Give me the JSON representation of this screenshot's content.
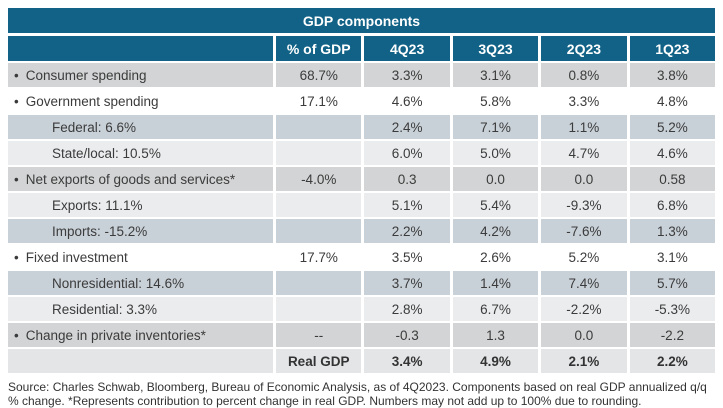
{
  "colors": {
    "header_teal": "#116286",
    "header_text": "#ffffff",
    "row_gray": "#d3d4d5",
    "row_white": "#ffffff",
    "row_sub_dark": "#c9d1d8",
    "row_sub_light": "#eaecee",
    "row_total": "#e3e5e7",
    "body_text": "#3b3b3b"
  },
  "chart_data": {
    "type": "table",
    "title": "GDP components",
    "columns": [
      "% of GDP",
      "4Q23",
      "3Q23",
      "2Q23",
      "1Q23"
    ],
    "rows": [
      {
        "label": "Consumer spending",
        "bullet": true,
        "indent": false,
        "bold": false,
        "shade": "gray",
        "cells": [
          "68.7%",
          "3.3%",
          "3.1%",
          "0.8%",
          "3.8%"
        ]
      },
      {
        "label": "Government spending",
        "bullet": true,
        "indent": false,
        "bold": false,
        "shade": "white",
        "cells": [
          "17.1%",
          "4.6%",
          "5.8%",
          "3.3%",
          "4.8%"
        ]
      },
      {
        "label": "Federal: 6.6%",
        "bullet": false,
        "indent": true,
        "bold": false,
        "shade": "subdark",
        "cells": [
          "",
          "2.4%",
          "7.1%",
          "1.1%",
          "5.2%"
        ]
      },
      {
        "label": "State/local: 10.5%",
        "bullet": false,
        "indent": true,
        "bold": false,
        "shade": "sublight",
        "cells": [
          "",
          "6.0%",
          "5.0%",
          "4.7%",
          "4.6%"
        ]
      },
      {
        "label": "Net exports of goods and services*",
        "bullet": true,
        "indent": false,
        "bold": false,
        "shade": "gray",
        "cells": [
          "-4.0%",
          "0.3",
          "0.0",
          "0.0",
          "0.58"
        ]
      },
      {
        "label": "Exports: 11.1%",
        "bullet": false,
        "indent": true,
        "bold": false,
        "shade": "sublight",
        "cells": [
          "",
          "5.1%",
          "5.4%",
          "-9.3%",
          "6.8%"
        ]
      },
      {
        "label": "Imports: -15.2%",
        "bullet": false,
        "indent": true,
        "bold": false,
        "shade": "subdark",
        "cells": [
          "",
          "2.2%",
          "4.2%",
          "-7.6%",
          "1.3%"
        ]
      },
      {
        "label": "Fixed investment",
        "bullet": true,
        "indent": false,
        "bold": false,
        "shade": "white",
        "cells": [
          "17.7%",
          "3.5%",
          "2.6%",
          "5.2%",
          "3.1%"
        ]
      },
      {
        "label": "Nonresidential: 14.6%",
        "bullet": false,
        "indent": true,
        "bold": false,
        "shade": "subdark",
        "cells": [
          "",
          "3.7%",
          "1.4%",
          "7.4%",
          "5.7%"
        ]
      },
      {
        "label": "Residential: 3.3%",
        "bullet": false,
        "indent": true,
        "bold": false,
        "shade": "sublight",
        "cells": [
          "",
          "2.8%",
          "6.7%",
          "-2.2%",
          "-5.3%"
        ]
      },
      {
        "label": "Change in private inventories*",
        "bullet": true,
        "indent": false,
        "bold": false,
        "shade": "gray",
        "cells": [
          "--",
          "-0.3",
          "1.3",
          "0.0",
          "-2.2"
        ]
      },
      {
        "label": "",
        "bullet": false,
        "indent": false,
        "bold": true,
        "shade": "total",
        "cells": [
          "Real GDP",
          "3.4%",
          "4.9%",
          "2.1%",
          "2.2%"
        ]
      }
    ]
  },
  "footer": "Source: Charles Schwab, Bloomberg, Bureau of Economic Analysis, as of 4Q2023. Components based on real GDP annualized q/q % change. *Represents contribution to percent change in real GDP. Numbers may not add up to 100% due to rounding."
}
